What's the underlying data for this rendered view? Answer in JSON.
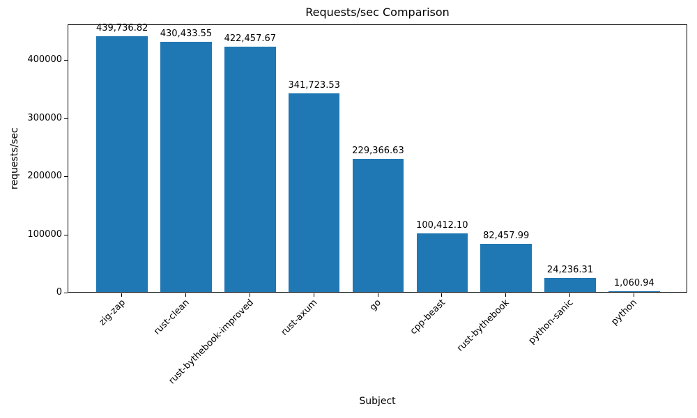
{
  "chart_data": {
    "type": "bar",
    "title": "Requests/sec Comparison",
    "xlabel": "Subject",
    "ylabel": "requests/sec",
    "categories": [
      "zig-zap",
      "rust-clean",
      "rust-bythebook-improved",
      "rust-axum",
      "go",
      "cpp-beast",
      "rust-bythebook",
      "python-sanic",
      "python"
    ],
    "values": [
      439736.82,
      430433.55,
      422457.67,
      341723.53,
      229366.63,
      100412.1,
      82457.99,
      24236.31,
      1060.94
    ],
    "value_labels": [
      "439,736.82",
      "430,433.55",
      "422,457.67",
      "341,723.53",
      "229,366.63",
      "100,412.10",
      "82,457.99",
      "24,236.31",
      "1,060.94"
    ],
    "yticks": [
      0,
      100000,
      200000,
      300000,
      400000
    ],
    "ytick_labels": [
      "0",
      "100000",
      "200000",
      "300000",
      "400000"
    ],
    "ylim": [
      0,
      461723
    ],
    "bar_color": "#1f77b4",
    "bar_width_fraction": 0.8,
    "grid": false,
    "legend": null
  }
}
